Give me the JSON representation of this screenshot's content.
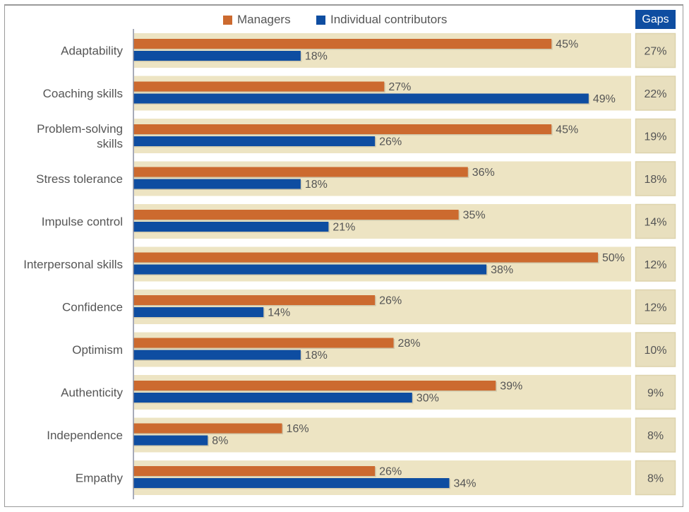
{
  "chart_data": {
    "type": "bar",
    "orientation": "horizontal",
    "title": "",
    "xlabel": "",
    "ylabel": "",
    "xlim": [
      0,
      50
    ],
    "grid": false,
    "legend_position": "top-center",
    "categories": [
      "Adaptability",
      "Coaching skills",
      "Problem-solving skills",
      "Stress tolerance",
      "Impulse control",
      "Interpersonal skills",
      "Confidence",
      "Optimism",
      "Authenticity",
      "Independence",
      "Empathy"
    ],
    "category_lines": [
      [
        "Adaptability"
      ],
      [
        "Coaching skills"
      ],
      [
        "Problem-solving",
        "skills"
      ],
      [
        "Stress tolerance"
      ],
      [
        "Impulse control"
      ],
      [
        "Interpersonal skills"
      ],
      [
        "Confidence"
      ],
      [
        "Optimism"
      ],
      [
        "Authenticity"
      ],
      [
        "Independence"
      ],
      [
        "Empathy"
      ]
    ],
    "series": [
      {
        "name": "Managers",
        "color": "#CC6A2F",
        "values": [
          45,
          27,
          45,
          36,
          35,
          50,
          26,
          28,
          39,
          16,
          26
        ]
      },
      {
        "name": "Individual contributors",
        "color": "#0E4DA1",
        "values": [
          18,
          49,
          26,
          18,
          21,
          38,
          14,
          18,
          30,
          8,
          34
        ]
      }
    ],
    "value_suffix": "%",
    "gaps": {
      "header": "Gaps",
      "values": [
        27,
        22,
        19,
        18,
        14,
        12,
        12,
        10,
        9,
        8,
        8
      ]
    }
  },
  "colors": {
    "row_band": "#EDE4C3",
    "gap_box": "#E8DFBE",
    "gap_box_border": "#DDD3AC",
    "gaps_header_bg": "#0E4DA1",
    "axis": "#8A8FA0",
    "text": "#555555"
  }
}
